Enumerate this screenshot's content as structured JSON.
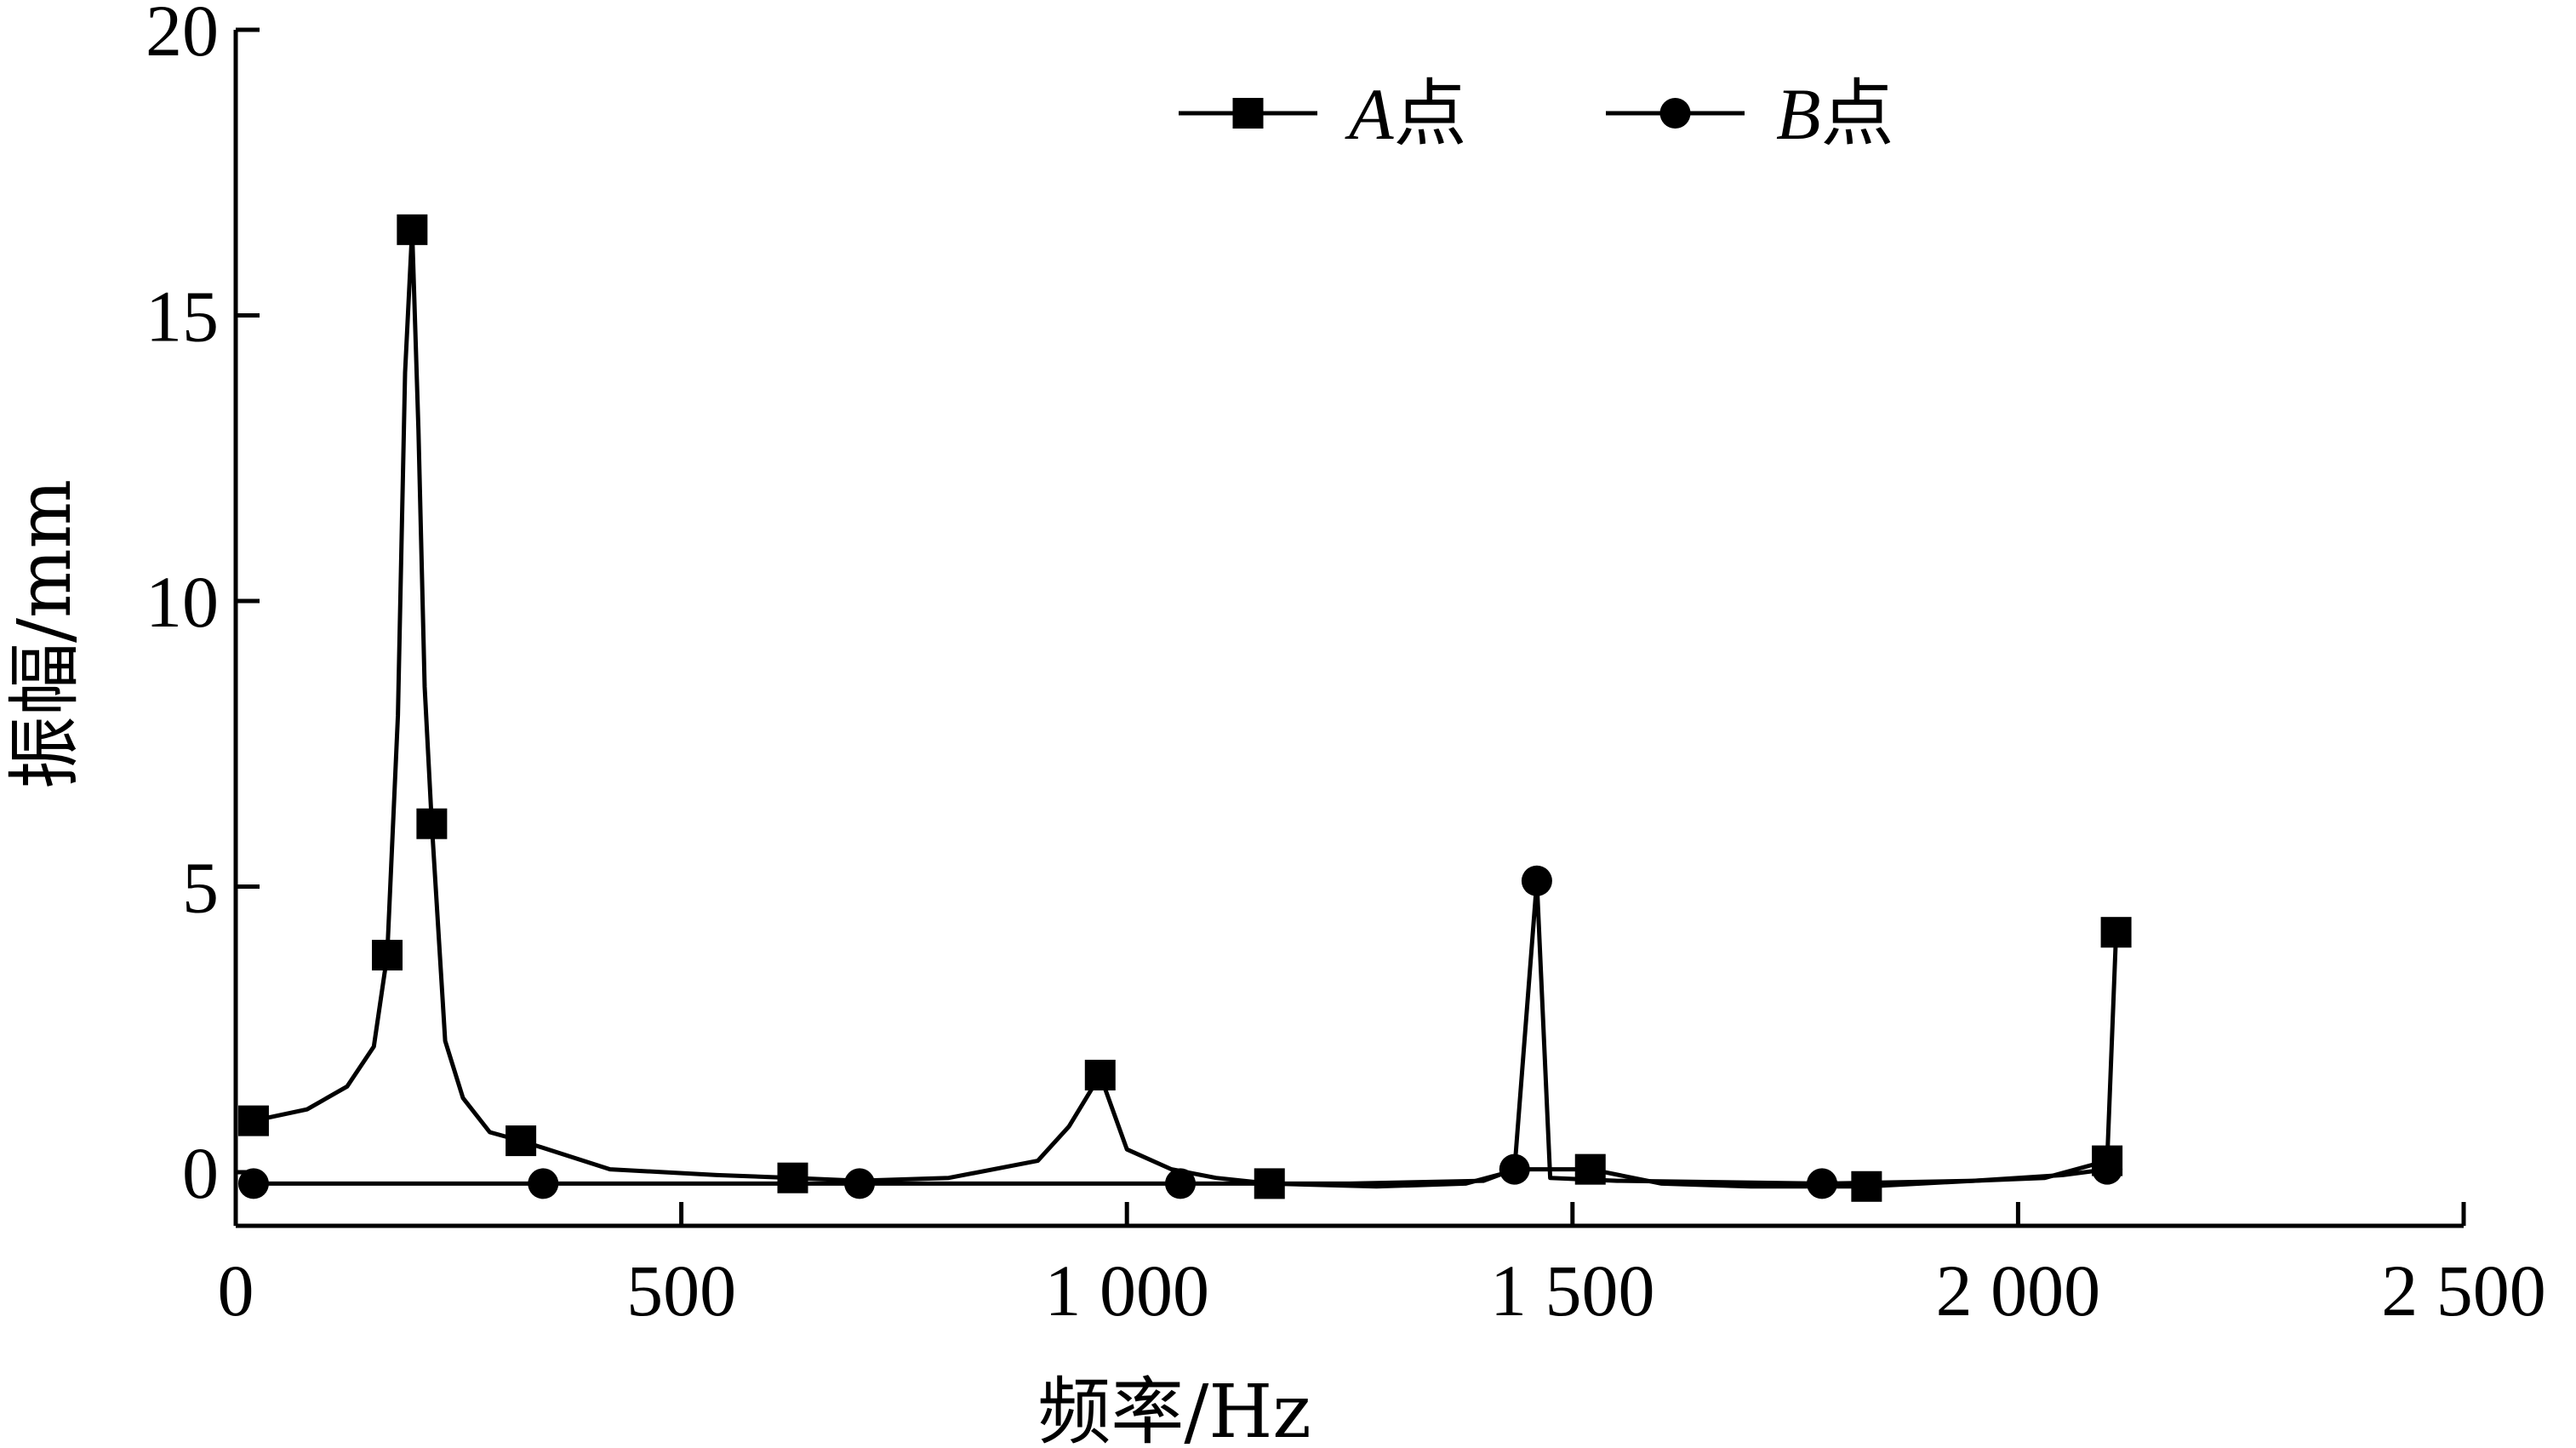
{
  "chart_data": {
    "type": "line",
    "title": "",
    "xlabel": "频率/Hz",
    "ylabel": "振幅/mm",
    "xlim": [
      0,
      2500
    ],
    "ylim": [
      -1,
      20
    ],
    "x_ticks": [
      0,
      500,
      1000,
      1500,
      2000,
      2500
    ],
    "x_tick_labels": [
      "0",
      "500",
      "1 000",
      "1 500",
      "2 000",
      "2 500"
    ],
    "y_ticks": [
      0,
      5,
      10,
      15,
      20
    ],
    "y_tick_labels": [
      "0",
      "5",
      "10",
      "15",
      "20"
    ],
    "grid": false,
    "legend_position": "top-center",
    "series": [
      {
        "name_letter": "A",
        "name_suffix": "点",
        "marker": "square",
        "color": "#000000",
        "curve": [
          [
            20,
            0.9
          ],
          [
            80,
            1.1
          ],
          [
            125,
            1.5
          ],
          [
            155,
            2.2
          ],
          [
            170,
            3.8
          ],
          [
            182,
            8
          ],
          [
            190,
            14
          ],
          [
            198,
            16.5
          ],
          [
            205,
            13
          ],
          [
            212,
            8.5
          ],
          [
            220,
            6.1
          ],
          [
            235,
            2.3
          ],
          [
            255,
            1.3
          ],
          [
            285,
            0.7
          ],
          [
            320,
            0.55
          ],
          [
            420,
            0.05
          ],
          [
            540,
            -0.05
          ],
          [
            625,
            -0.1
          ],
          [
            700,
            -0.15
          ],
          [
            800,
            -0.1
          ],
          [
            900,
            0.2
          ],
          [
            935,
            0.8
          ],
          [
            970,
            1.7
          ],
          [
            1000,
            0.4
          ],
          [
            1050,
            0.05
          ],
          [
            1100,
            -0.1
          ],
          [
            1160,
            -0.2
          ],
          [
            1280,
            -0.25
          ],
          [
            1380,
            -0.2
          ],
          [
            1440,
            0.05
          ],
          [
            1480,
            0.05
          ],
          [
            1520,
            0.05
          ],
          [
            1600,
            -0.2
          ],
          [
            1700,
            -0.25
          ],
          [
            1830,
            -0.25
          ],
          [
            1950,
            -0.15
          ],
          [
            2030,
            -0.1
          ],
          [
            2100,
            0.2
          ],
          [
            2110,
            4.2
          ]
        ],
        "markers": [
          [
            20,
            0.9
          ],
          [
            170,
            3.8
          ],
          [
            198,
            16.5
          ],
          [
            220,
            6.1
          ],
          [
            320,
            0.55
          ],
          [
            625,
            -0.1
          ],
          [
            970,
            1.7
          ],
          [
            1160,
            -0.2
          ],
          [
            1520,
            0.05
          ],
          [
            1830,
            -0.25
          ],
          [
            2100,
            0.2
          ],
          [
            2110,
            4.2
          ]
        ]
      },
      {
        "name_letter": "B",
        "name_suffix": "点",
        "marker": "circle",
        "color": "#000000",
        "curve": [
          [
            20,
            -0.2
          ],
          [
            345,
            -0.2
          ],
          [
            700,
            -0.2
          ],
          [
            1060,
            -0.2
          ],
          [
            1250,
            -0.2
          ],
          [
            1400,
            -0.15
          ],
          [
            1435,
            0.05
          ],
          [
            1460,
            5.1
          ],
          [
            1475,
            -0.1
          ],
          [
            1550,
            -0.15
          ],
          [
            1780,
            -0.2
          ],
          [
            1950,
            -0.15
          ],
          [
            2050,
            -0.05
          ],
          [
            2100,
            0.05
          ]
        ],
        "markers": [
          [
            20,
            -0.2
          ],
          [
            345,
            -0.2
          ],
          [
            700,
            -0.2
          ],
          [
            1060,
            -0.2
          ],
          [
            1435,
            0.05
          ],
          [
            1460,
            5.1
          ],
          [
            1780,
            -0.2
          ],
          [
            2100,
            0.05
          ]
        ]
      }
    ]
  }
}
